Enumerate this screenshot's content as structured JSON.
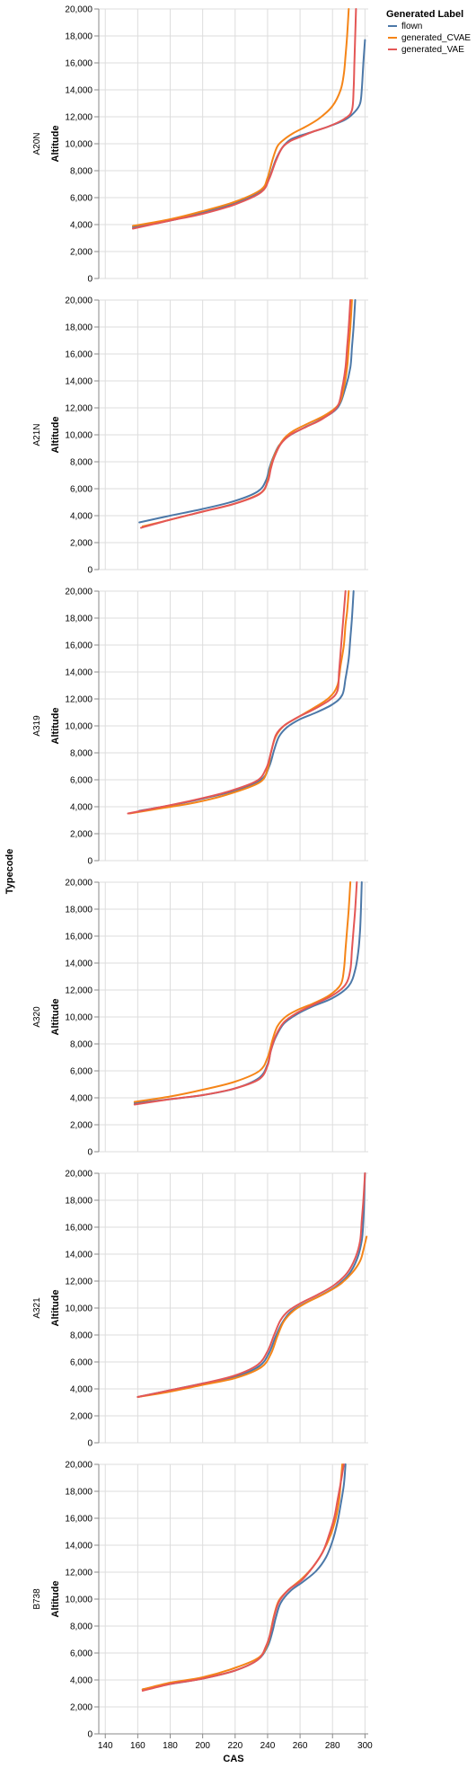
{
  "chart_data": {
    "type": "line",
    "facet_title": "Typecode",
    "xlabel": "CAS",
    "ylabel": "Altitude",
    "xlim": [
      136,
      302
    ],
    "ylim": [
      0,
      20000
    ],
    "x_ticks": [
      140,
      160,
      180,
      200,
      220,
      240,
      260,
      280,
      300
    ],
    "y_ticks": [
      0,
      2000,
      4000,
      6000,
      8000,
      10000,
      12000,
      14000,
      16000,
      18000,
      20000
    ],
    "y_tick_labels": [
      "0",
      "2,000",
      "4,000",
      "6,000",
      "8,000",
      "10,000",
      "12,000",
      "14,000",
      "16,000",
      "18,000",
      "20,000"
    ],
    "grid": true,
    "legend": {
      "title": "Generated Label",
      "position": "top-right",
      "entries": [
        {
          "name": "flown",
          "color": "#4c78a8"
        },
        {
          "name": "generated_CVAE",
          "color": "#f58518"
        },
        {
          "name": "generated_VAE",
          "color": "#e45756"
        }
      ]
    },
    "facets": [
      {
        "label": "A20N",
        "series": [
          {
            "name": "flown",
            "x": [
              157,
              180,
              200,
              220,
              236,
              241,
              245,
              249,
              254,
              260,
              268,
              278,
              288,
              294,
              297,
              298,
              299,
              300
            ],
            "y": [
              3800,
              4300,
              4900,
              5600,
              6500,
              7500,
              8800,
              9700,
              10300,
              10600,
              10900,
              11300,
              11800,
              12400,
              13000,
              14000,
              16000,
              17700
            ]
          },
          {
            "name": "generated_CVAE",
            "x": [
              157,
              180,
              200,
              220,
              236,
              240,
              243,
              246,
              250,
              256,
              264,
              272,
              280,
              285,
              287,
              288,
              289,
              290
            ],
            "y": [
              3900,
              4400,
              5000,
              5700,
              6600,
              7500,
              8800,
              9800,
              10300,
              10800,
              11300,
              11900,
              12800,
              14000,
              15200,
              16500,
              18000,
              20000
            ]
          },
          {
            "name": "generated_VAE",
            "x": [
              157,
              180,
              200,
              220,
              236,
              241,
              245,
              249,
              254,
              260,
              268,
              278,
              288,
              292,
              293,
              293.5,
              294,
              294.5
            ],
            "y": [
              3700,
              4300,
              4800,
              5500,
              6400,
              7400,
              8700,
              9700,
              10200,
              10500,
              10900,
              11300,
              11900,
              12500,
              14000,
              16000,
              18000,
              20000
            ]
          }
        ]
      },
      {
        "label": "A21N",
        "series": [
          {
            "name": "flown",
            "x": [
              161,
              180,
              200,
              220,
              234,
              239,
              241,
              243,
              247,
              253,
              262,
              272,
              283,
              288,
              291,
              292,
              293,
              294
            ],
            "y": [
              3500,
              4000,
              4500,
              5100,
              5800,
              6600,
              7500,
              8200,
              9200,
              9900,
              10500,
              11100,
              12000,
              13500,
              15000,
              16500,
              18000,
              20000
            ]
          },
          {
            "name": "generated_CVAE",
            "x": [
              163,
              180,
              200,
              220,
              236,
              240,
              242,
              245,
              250,
              256,
              266,
              276,
              284,
              287,
              289,
              290,
              291,
              292
            ],
            "y": [
              3200,
              3700,
              4300,
              4900,
              5700,
              6600,
              7700,
              8700,
              9700,
              10300,
              10900,
              11500,
              12300,
              13500,
              15000,
              16500,
              18000,
              20000
            ]
          },
          {
            "name": "generated_VAE",
            "x": [
              162,
              180,
              200,
              220,
              235,
              240,
              242,
              244,
              248,
              254,
              264,
              274,
              283,
              286,
              288,
              289,
              290,
              291
            ],
            "y": [
              3100,
              3700,
              4300,
              4900,
              5600,
              6500,
              7500,
              8300,
              9300,
              10000,
              10600,
              11200,
              12100,
              13500,
              15000,
              16500,
              18000,
              20000
            ]
          }
        ]
      },
      {
        "label": "A319",
        "series": [
          {
            "name": "flown",
            "x": [
              161,
              180,
              200,
              220,
              236,
              241,
              244,
              247,
              252,
              260,
              270,
              280,
              286,
              288,
              290,
              291,
              292,
              293
            ],
            "y": [
              3700,
              4100,
              4600,
              5200,
              6000,
              7000,
              8200,
              9200,
              9900,
              10500,
              11000,
              11600,
              12300,
              13500,
              15000,
              16500,
              18000,
              20000
            ]
          },
          {
            "name": "generated_CVAE",
            "x": [
              155,
              175,
              195,
              215,
              235,
              240,
              242,
              245,
              250,
              258,
              268,
              278,
              283,
              285,
              287,
              288,
              289,
              290
            ],
            "y": [
              3500,
              3900,
              4300,
              4900,
              5800,
              6800,
              8000,
              9200,
              10000,
              10600,
              11300,
              12100,
              13000,
              14500,
              16000,
              17500,
              18500,
              20000
            ]
          },
          {
            "name": "generated_VAE",
            "x": [
              154,
              175,
              195,
              215,
              233,
              239,
              242,
              245,
              250,
              258,
              268,
              278,
              283,
              284,
              285,
              286,
              287,
              288
            ],
            "y": [
              3500,
              4000,
              4500,
              5100,
              5900,
              6800,
              8000,
              9300,
              10000,
              10600,
              11200,
              11900,
              12600,
              14000,
              15500,
              17000,
              18500,
              20000
            ]
          }
        ]
      },
      {
        "label": "A320",
        "series": [
          {
            "name": "flown",
            "x": [
              158,
              180,
              200,
              220,
              235,
              240,
              242,
              245,
              250,
              258,
              268,
              280,
              290,
              294,
              296,
              297,
              297.5,
              298
            ],
            "y": [
              3600,
              3900,
              4200,
              4700,
              5500,
              6500,
              7500,
              8500,
              9500,
              10200,
              10800,
              11400,
              12300,
              13500,
              15000,
              16500,
              18000,
              20000
            ]
          },
          {
            "name": "generated_CVAE",
            "x": [
              158,
              180,
              200,
              220,
              235,
              240,
              243,
              246,
              251,
              258,
              268,
              278,
              285,
              287,
              288,
              289,
              290,
              291
            ],
            "y": [
              3700,
              4100,
              4600,
              5200,
              6000,
              7000,
              8300,
              9300,
              10000,
              10500,
              11000,
              11600,
              12400,
              13500,
              15000,
              16500,
              18000,
              20000
            ]
          },
          {
            "name": "generated_VAE",
            "x": [
              158,
              180,
              200,
              220,
              235,
              240,
              242,
              245,
              250,
              258,
              268,
              280,
              288,
              291,
              292,
              293,
              294,
              295
            ],
            "y": [
              3500,
              3900,
              4200,
              4700,
              5400,
              6400,
              7500,
              8600,
              9600,
              10300,
              10900,
              11600,
              12400,
              13500,
              15000,
              16500,
              18000,
              20000
            ]
          }
        ]
      },
      {
        "label": "A321",
        "series": [
          {
            "name": "flown",
            "x": [
              160,
              180,
              200,
              220,
              235,
              241,
              245,
              249,
              254,
              262,
              272,
              282,
              290,
              295,
              298,
              299,
              299.5,
              300
            ],
            "y": [
              3400,
              3900,
              4400,
              4900,
              5700,
              6700,
              7900,
              8900,
              9700,
              10300,
              10900,
              11600,
              12500,
              13600,
              15000,
              16500,
              18000,
              20000
            ]
          },
          {
            "name": "generated_CVAE",
            "x": [
              160,
              180,
              200,
              220,
              236,
              242,
              246,
              250,
              256,
              264,
              274,
              284,
              292,
              297,
              299,
              301
            ],
            "y": [
              3400,
              3800,
              4300,
              4800,
              5600,
              6600,
              7900,
              9000,
              9800,
              10400,
              11000,
              11700,
              12600,
              13500,
              14300,
              15300
            ]
          },
          {
            "name": "generated_VAE",
            "x": [
              160,
              180,
              200,
              220,
              234,
              240,
              244,
              248,
              253,
              261,
              271,
              281,
              289,
              294,
              297,
              298,
              299,
              300
            ],
            "y": [
              3400,
              3900,
              4400,
              5000,
              5800,
              6800,
              8000,
              9100,
              9800,
              10400,
              11000,
              11700,
              12600,
              13700,
              15000,
              16500,
              18000,
              20000
            ]
          }
        ]
      },
      {
        "label": "B738",
        "series": [
          {
            "name": "flown",
            "x": [
              163,
              180,
              200,
              220,
              234,
              240,
              243,
              245,
              248,
              254,
              262,
              270,
              276,
              280,
              283,
              285,
              287,
              288
            ],
            "y": [
              3300,
              3700,
              4100,
              4700,
              5500,
              6500,
              7600,
              8600,
              9700,
              10600,
              11300,
              12100,
              13100,
              14300,
              15700,
              17000,
              18500,
              20000
            ]
          },
          {
            "name": "generated_CVAE",
            "x": [
              163,
              180,
              200,
              220,
              235,
              240,
              242,
              244,
              247,
              253,
              261,
              268,
              274,
              279,
              282,
              284,
              285,
              286
            ],
            "y": [
              3300,
              3800,
              4200,
              4900,
              5700,
              6700,
              7700,
              8800,
              9900,
              10700,
              11500,
              12400,
              13500,
              14800,
              16000,
              17300,
              18600,
              20000
            ]
          },
          {
            "name": "generated_VAE",
            "x": [
              163,
              180,
              200,
              220,
              234,
              239,
              242,
              244,
              247,
              253,
              261,
              268,
              274,
              278,
              281,
              283,
              285,
              287
            ],
            "y": [
              3200,
              3700,
              4100,
              4700,
              5500,
              6500,
              7600,
              8700,
              9800,
              10700,
              11400,
              12400,
              13500,
              14800,
              16000,
              17300,
              18600,
              20000
            ]
          }
        ]
      }
    ]
  }
}
